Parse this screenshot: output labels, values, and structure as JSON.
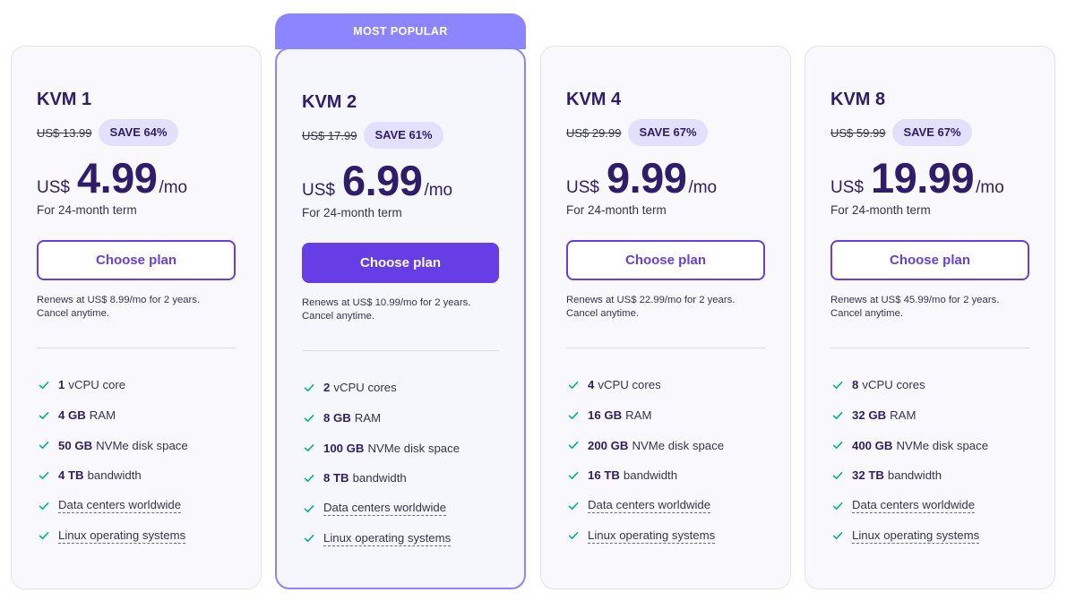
{
  "popular_label": "MOST POPULAR",
  "colors": {
    "accent": "#673de6",
    "popular_border": "#8c85ff",
    "badge_bg": "#e2e0fc",
    "text_dark": "#2f1c6a"
  },
  "plans": [
    {
      "name": "KVM 1",
      "old_price": "US$ 13.99",
      "save": "SAVE 64%",
      "currency": "US$",
      "price": "4.99",
      "per": "/mo",
      "term": "For 24-month term",
      "button": "Choose plan",
      "renews_1": "Renews at US$ 8.99/mo for 2 years.",
      "renews_2": "Cancel anytime.",
      "features": [
        {
          "bold": "1",
          "text": "vCPU core"
        },
        {
          "bold": "4 GB",
          "text": "RAM"
        },
        {
          "bold": "50 GB",
          "text": "NVMe disk space"
        },
        {
          "bold": "4 TB",
          "text": "bandwidth"
        },
        {
          "text": "Data centers worldwide"
        },
        {
          "text": "Linux operating systems"
        }
      ]
    },
    {
      "name": "KVM 2",
      "old_price": "US$ 17.99",
      "save": "SAVE 61%",
      "currency": "US$",
      "price": "6.99",
      "per": "/mo",
      "term": "For 24-month term",
      "button": "Choose plan",
      "renews_1": "Renews at US$ 10.99/mo for 2 years.",
      "renews_2": "Cancel anytime.",
      "features": [
        {
          "bold": "2",
          "text": "vCPU cores"
        },
        {
          "bold": "8 GB",
          "text": "RAM"
        },
        {
          "bold": "100 GB",
          "text": "NVMe disk space"
        },
        {
          "bold": "8 TB",
          "text": "bandwidth"
        },
        {
          "text": "Data centers worldwide"
        },
        {
          "text": "Linux operating systems"
        }
      ]
    },
    {
      "name": "KVM 4",
      "old_price": "US$ 29.99",
      "save": "SAVE 67%",
      "currency": "US$",
      "price": "9.99",
      "per": "/mo",
      "term": "For 24-month term",
      "button": "Choose plan",
      "renews_1": "Renews at US$ 22.99/mo for 2 years.",
      "renews_2": "Cancel anytime.",
      "features": [
        {
          "bold": "4",
          "text": "vCPU cores"
        },
        {
          "bold": "16 GB",
          "text": "RAM"
        },
        {
          "bold": "200 GB",
          "text": "NVMe disk space"
        },
        {
          "bold": "16 TB",
          "text": "bandwidth"
        },
        {
          "text": "Data centers worldwide"
        },
        {
          "text": "Linux operating systems"
        }
      ]
    },
    {
      "name": "KVM 8",
      "old_price": "US$ 59.99",
      "save": "SAVE 67%",
      "currency": "US$",
      "price": "19.99",
      "per": "/mo",
      "term": "For 24-month term",
      "button": "Choose plan",
      "renews_1": "Renews at US$ 45.99/mo for 2 years.",
      "renews_2": "Cancel anytime.",
      "features": [
        {
          "bold": "8",
          "text": "vCPU cores"
        },
        {
          "bold": "32 GB",
          "text": "RAM"
        },
        {
          "bold": "400 GB",
          "text": "NVMe disk space"
        },
        {
          "bold": "32 TB",
          "text": "bandwidth"
        },
        {
          "text": "Data centers worldwide"
        },
        {
          "text": "Linux operating systems"
        }
      ]
    }
  ]
}
